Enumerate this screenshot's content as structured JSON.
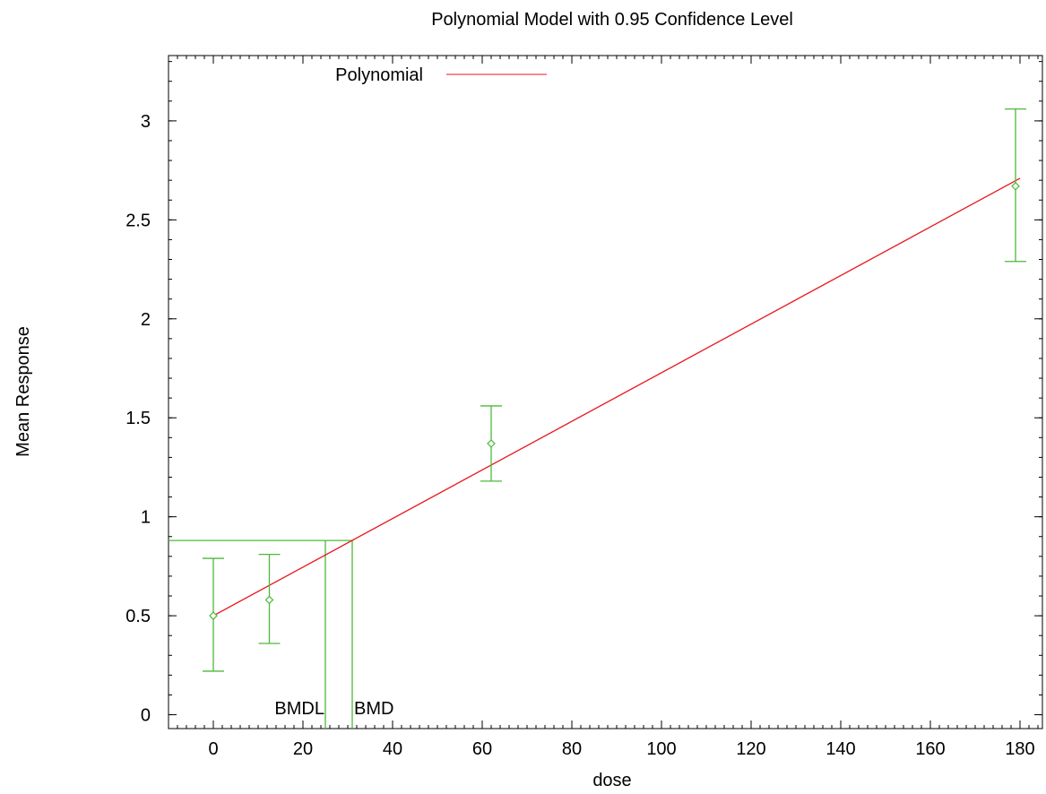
{
  "chart_data": {
    "type": "line",
    "title": "Polynomial Model with 0.95 Confidence Level",
    "xlabel": "dose",
    "ylabel": "Mean Response",
    "xlim": [
      -10,
      185
    ],
    "ylim": [
      -0.07,
      3.33
    ],
    "xticks": [
      0,
      20,
      40,
      60,
      80,
      100,
      120,
      140,
      160,
      180
    ],
    "yticks": [
      0,
      0.5,
      1,
      1.5,
      2,
      2.5,
      3
    ],
    "xtick_labels": [
      "0",
      "20",
      "40",
      "60",
      "80",
      "100",
      "120",
      "140",
      "160",
      "180"
    ],
    "ytick_labels": [
      "0",
      "0.5",
      "1",
      "1.5",
      "2",
      "2.5",
      "3"
    ],
    "legend": {
      "label": "Polynomial",
      "placement": "top-left",
      "color": "#e8161d"
    },
    "fit_line": {
      "name": "Polynomial",
      "color": "#e8161d",
      "x": [
        0,
        180
      ],
      "y": [
        0.5,
        2.71
      ]
    },
    "points": {
      "color": "#4db83a",
      "data": [
        {
          "x": 0,
          "y": 0.5,
          "lower": 0.22,
          "upper": 0.79
        },
        {
          "x": 12.5,
          "y": 0.58,
          "lower": 0.36,
          "upper": 0.81
        },
        {
          "x": 62,
          "y": 1.37,
          "lower": 1.18,
          "upper": 1.56
        },
        {
          "x": 179,
          "y": 2.67,
          "lower": 2.29,
          "upper": 3.06
        }
      ]
    },
    "bmd": {
      "color": "#4db83a",
      "bmr_response": 0.88,
      "bmd": 31,
      "bmdl": 25,
      "bmd_label": "BMD",
      "bmdl_label": "BMDL"
    },
    "grid": false
  }
}
